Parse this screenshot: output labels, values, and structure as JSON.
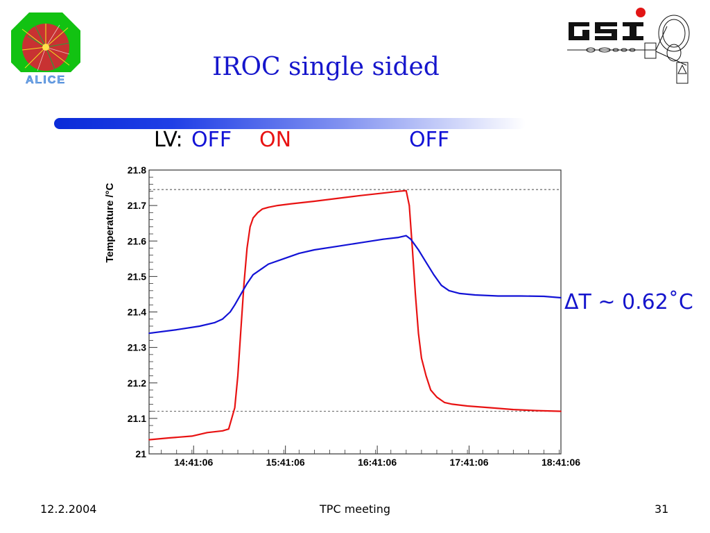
{
  "slide": {
    "title": "IROC single sided",
    "lv_prefix": "LV:",
    "lv_states": [
      {
        "text": "OFF",
        "color": "#1212d6"
      },
      {
        "text": "ON",
        "color": "#e81212"
      },
      {
        "text": "OFF",
        "color": "#1212d6"
      }
    ],
    "delta_label": "ΔT ~ 0.62˚C",
    "footer": {
      "date": "12.2.2004",
      "center": "TPC meeting",
      "page": "31"
    },
    "logos": {
      "left": "ALICE",
      "right": "GSI"
    }
  },
  "chart_data": {
    "type": "line",
    "title": "",
    "xlabel": "",
    "ylabel": "Temperature /°C",
    "xlim": [
      "14:12:00",
      "18:41:06"
    ],
    "ylim": [
      21.0,
      21.8
    ],
    "yticks": [
      "21",
      "21.1",
      "21.2",
      "21.3",
      "21.4",
      "21.5",
      "21.6",
      "21.7",
      "21.8"
    ],
    "xticks": [
      "14:41:06",
      "15:41:06",
      "16:41:06",
      "17:41:06",
      "18:41:06"
    ],
    "grid": false,
    "reference_lines_y": [
      21.745,
      21.12
    ],
    "series": [
      {
        "color": "#e81212",
        "x": [
          "14:12:00",
          "14:25:00",
          "14:40:00",
          "14:50:00",
          "15:00:00",
          "15:04:00",
          "15:08:00",
          "15:10:00",
          "15:12:00",
          "15:14:00",
          "15:16:00",
          "15:18:00",
          "15:20:00",
          "15:23:00",
          "15:26:00",
          "15:30:00",
          "15:36:00",
          "15:45:00",
          "16:00:00",
          "16:15:00",
          "16:30:00",
          "16:45:00",
          "16:55:00",
          "17:00:00",
          "17:02:00",
          "17:04:00",
          "17:06:00",
          "17:08:00",
          "17:10:00",
          "17:13:00",
          "17:16:00",
          "17:20:00",
          "17:25:00",
          "17:30:00",
          "17:40:00",
          "17:55:00",
          "18:10:00",
          "18:25:00",
          "18:41:06"
        ],
        "values": [
          21.04,
          21.045,
          21.05,
          21.06,
          21.065,
          21.07,
          21.13,
          21.22,
          21.35,
          21.48,
          21.58,
          21.64,
          21.665,
          21.68,
          21.69,
          21.695,
          21.7,
          21.705,
          21.712,
          21.72,
          21.728,
          21.735,
          21.74,
          21.742,
          21.7,
          21.58,
          21.45,
          21.34,
          21.27,
          21.22,
          21.18,
          21.16,
          21.145,
          21.14,
          21.135,
          21.13,
          21.125,
          21.122,
          21.12
        ]
      },
      {
        "color": "#1212d6",
        "x": [
          "14:12:00",
          "14:30:00",
          "14:45:00",
          "14:55:00",
          "15:00:00",
          "15:05:00",
          "15:08:00",
          "15:12:00",
          "15:16:00",
          "15:20:00",
          "15:25:00",
          "15:30:00",
          "15:40:00",
          "15:50:00",
          "16:00:00",
          "16:15:00",
          "16:30:00",
          "16:45:00",
          "16:55:00",
          "17:00:00",
          "17:03:00",
          "17:08:00",
          "17:13:00",
          "17:18:00",
          "17:23:00",
          "17:28:00",
          "17:35:00",
          "17:45:00",
          "18:00:00",
          "18:15:00",
          "18:30:00",
          "18:41:06"
        ],
        "values": [
          21.34,
          21.35,
          21.36,
          21.37,
          21.38,
          21.4,
          21.42,
          21.45,
          21.48,
          21.505,
          21.52,
          21.535,
          21.55,
          21.565,
          21.575,
          21.585,
          21.595,
          21.605,
          21.61,
          21.615,
          21.605,
          21.575,
          21.54,
          21.505,
          21.475,
          21.46,
          21.452,
          21.448,
          21.445,
          21.445,
          21.444,
          21.44
        ]
      }
    ]
  }
}
